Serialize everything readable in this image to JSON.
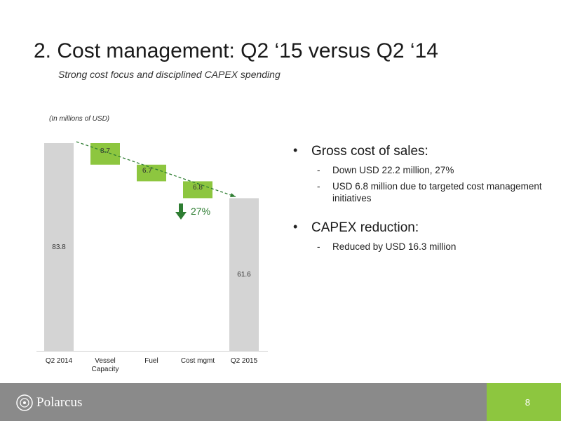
{
  "header": {
    "title": "2. Cost management: Q2 ‘15 versus Q2 ‘14",
    "subtitle": "Strong cost focus and disciplined CAPEX spending"
  },
  "chart_data": {
    "type": "bar",
    "units_note": "(In millions of USD)",
    "categories": [
      "Q2 2014",
      "Vessel Capacity",
      "Fuel",
      "Cost mgmt",
      "Q2 2015"
    ],
    "values": [
      83.8,
      -8.7,
      -6.7,
      -6.8,
      61.6
    ],
    "value_labels": [
      "83.8",
      "8.7",
      "6.7",
      "6.8",
      "61.6"
    ],
    "bar_kinds": [
      "total",
      "decrease",
      "decrease",
      "decrease",
      "total"
    ],
    "change_label": "27%",
    "colors": {
      "total": "#d4d4d4",
      "decrease": "#8dc63f",
      "trend": "#2e7d32"
    },
    "ylim": [
      0,
      83.8
    ]
  },
  "bullets": [
    {
      "head": "Gross cost of sales:",
      "subs": [
        "Down USD 22.2 million, 27%",
        "USD 6.8 million due to targeted cost management initiatives"
      ]
    },
    {
      "head": "CAPEX reduction:",
      "subs": [
        "Reduced by USD 16.3 million"
      ]
    }
  ],
  "bullet_marker": "•",
  "sub_marker": "-",
  "footer": {
    "logo_text": "Polarcus",
    "page_number": "8"
  }
}
